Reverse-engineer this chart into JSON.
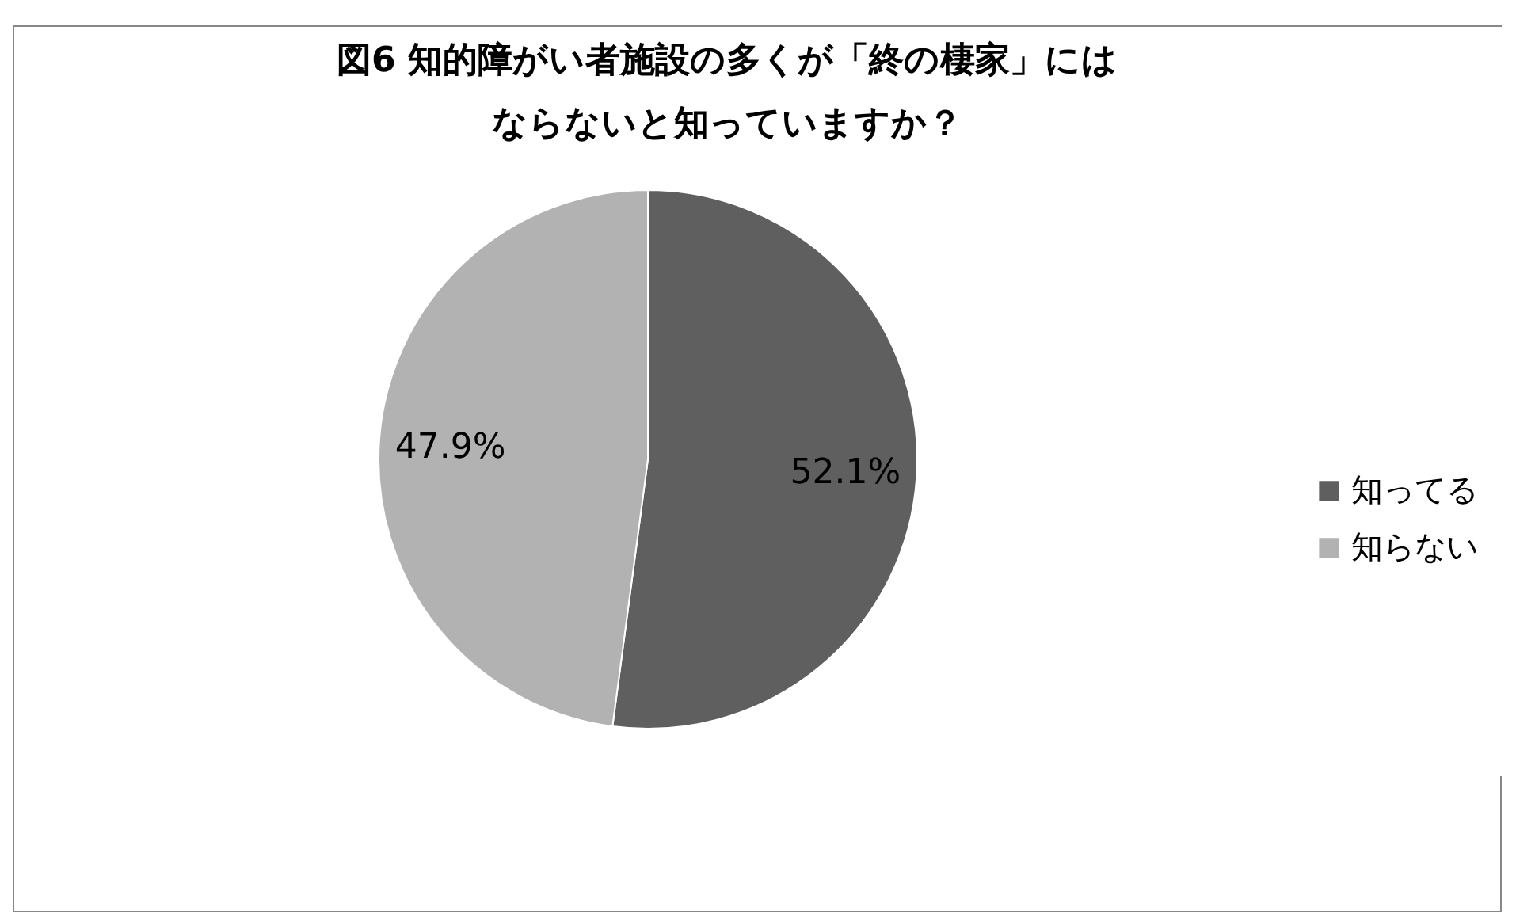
{
  "chart_data": {
    "type": "pie",
    "title": "図6 知的障がい者施設の多くが「終の棲家」にはならないと知っていますか？",
    "categories": [
      "知ってる",
      "知らない"
    ],
    "values": [
      52.1,
      47.9
    ],
    "colors": [
      "#5f5f5f",
      "#b2b2b2"
    ],
    "value_labels": [
      "52.1%",
      "47.9%"
    ],
    "legend": "right"
  }
}
